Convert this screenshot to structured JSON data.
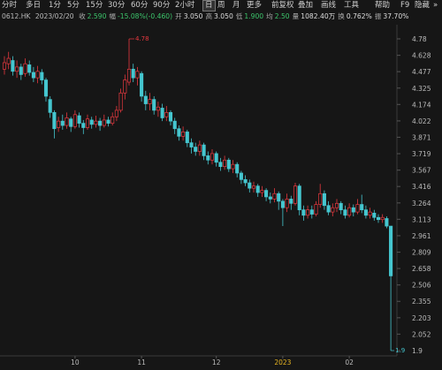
{
  "toolbar": {
    "periods": [
      "分时",
      "多日",
      "1分",
      "5分",
      "15分",
      "30分",
      "60分",
      "90分",
      "2小时",
      "日",
      "周",
      "月",
      "更多"
    ],
    "selected": "日",
    "tools": [
      "前复权",
      "叠加",
      "画线",
      "工具",
      "帮助",
      "F9",
      "隐藏"
    ]
  },
  "quote": {
    "code": "0612.HK",
    "date": "2023/02/20",
    "fields": [
      {
        "label": "收",
        "value": "2.590",
        "color": "#3cc46b"
      },
      {
        "label": "幅",
        "value": "-15.08%(-0.460)",
        "color": "#3cc46b"
      },
      {
        "label": "开",
        "value": "3.050",
        "color": "#dddddd"
      },
      {
        "label": "高",
        "value": "3.050",
        "color": "#dddddd"
      },
      {
        "label": "低",
        "value": "1.900",
        "color": "#3cc46b"
      },
      {
        "label": "均",
        "value": "2.50",
        "color": "#3cc46b"
      },
      {
        "label": "量",
        "value": "1082.40万",
        "color": "#dddddd"
      },
      {
        "label": "换",
        "value": "0.762%",
        "color": "#dddddd"
      },
      {
        "label": "振",
        "value": "37.70%",
        "color": "#dddddd"
      }
    ]
  },
  "chart_data": {
    "type": "candlestick",
    "up_color": "#e8383f",
    "down_color": "#45c6cf",
    "categories": [
      null,
      null,
      null,
      null,
      null,
      null,
      null,
      null,
      null,
      null,
      null,
      null,
      null,
      null,
      null,
      null,
      null,
      "10",
      null,
      null,
      null,
      null,
      null,
      null,
      null,
      null,
      null,
      null,
      null,
      null,
      null,
      null,
      null,
      "11",
      null,
      null,
      null,
      null,
      null,
      null,
      null,
      null,
      null,
      null,
      null,
      null,
      null,
      null,
      null,
      null,
      null,
      "12",
      null,
      null,
      null,
      null,
      null,
      null,
      null,
      null,
      null,
      null,
      null,
      null,
      null,
      null,
      null,
      "2023",
      null,
      null,
      null,
      null,
      null,
      null,
      null,
      null,
      null,
      null,
      null,
      null,
      null,
      null,
      null,
      "02",
      null,
      null,
      null,
      null,
      null,
      null,
      null,
      null,
      null,
      null
    ],
    "open": [
      4.5,
      4.55,
      4.58,
      4.48,
      4.52,
      4.46,
      4.54,
      4.47,
      4.42,
      4.47,
      4.4,
      4.22,
      4.1,
      3.96,
      4.02,
      3.98,
      4.04,
      3.97,
      4.07,
      4.0,
      3.96,
      4.03,
      3.99,
      4.02,
      3.98,
      4.03,
      4.0,
      4.06,
      4.12,
      4.28,
      4.38,
      4.5,
      4.42,
      4.46,
      4.25,
      4.18,
      4.22,
      4.12,
      4.14,
      4.06,
      4.1,
      4.02,
      3.95,
      3.88,
      3.92,
      3.82,
      3.78,
      3.74,
      3.8,
      3.7,
      3.66,
      3.72,
      3.64,
      3.6,
      3.66,
      3.58,
      3.62,
      3.54,
      3.48,
      3.45,
      3.4,
      3.42,
      3.36,
      3.38,
      3.32,
      3.3,
      3.35,
      3.28,
      3.22,
      3.3,
      3.26,
      3.42,
      3.2,
      3.15,
      3.2,
      3.16,
      3.25,
      3.35,
      3.24,
      3.18,
      3.22,
      3.26,
      3.2,
      3.15,
      3.22,
      3.18,
      3.25,
      3.2,
      3.15,
      3.17,
      3.13,
      3.11,
      3.12,
      3.05
    ],
    "high": [
      4.62,
      4.66,
      4.62,
      4.58,
      4.55,
      4.6,
      4.58,
      4.52,
      4.53,
      4.5,
      4.42,
      4.25,
      4.12,
      4.06,
      4.08,
      4.1,
      4.06,
      4.12,
      4.1,
      4.03,
      4.08,
      4.06,
      4.07,
      4.05,
      4.08,
      4.06,
      4.1,
      4.16,
      4.32,
      4.45,
      4.78,
      4.55,
      4.52,
      4.48,
      4.3,
      4.28,
      4.25,
      4.2,
      4.18,
      4.16,
      4.12,
      4.05,
      3.98,
      3.97,
      3.94,
      3.86,
      3.82,
      3.84,
      3.82,
      3.74,
      3.76,
      3.74,
      3.68,
      3.7,
      3.68,
      3.66,
      3.64,
      3.56,
      3.52,
      3.48,
      3.46,
      3.44,
      3.42,
      3.4,
      3.36,
      3.4,
      3.37,
      3.3,
      3.35,
      3.33,
      3.45,
      3.44,
      3.24,
      3.24,
      3.24,
      3.28,
      3.44,
      3.38,
      3.28,
      3.26,
      3.3,
      3.28,
      3.24,
      3.26,
      3.25,
      3.3,
      3.34,
      3.24,
      3.22,
      3.2,
      3.16,
      3.16,
      3.14,
      3.05
    ],
    "low": [
      4.45,
      4.5,
      4.44,
      4.42,
      4.4,
      4.43,
      4.44,
      4.38,
      4.37,
      4.36,
      4.2,
      4.05,
      3.86,
      3.92,
      3.94,
      3.95,
      3.92,
      3.95,
      3.96,
      3.9,
      3.94,
      3.95,
      3.96,
      3.93,
      3.96,
      3.97,
      3.98,
      4.02,
      4.1,
      4.22,
      4.35,
      4.38,
      4.35,
      4.2,
      4.12,
      4.12,
      4.08,
      4.06,
      4.02,
      4.02,
      3.98,
      3.9,
      3.84,
      3.84,
      3.78,
      3.72,
      3.7,
      3.7,
      3.66,
      3.62,
      3.62,
      3.6,
      3.56,
      3.57,
      3.55,
      3.54,
      3.5,
      3.44,
      3.42,
      3.36,
      3.36,
      3.32,
      3.32,
      3.28,
      3.26,
      3.27,
      3.2,
      3.05,
      3.18,
      3.2,
      3.24,
      3.15,
      3.1,
      3.12,
      3.12,
      3.14,
      3.22,
      3.2,
      3.15,
      3.14,
      3.18,
      3.16,
      3.12,
      3.13,
      3.14,
      3.16,
      3.17,
      3.12,
      3.12,
      3.1,
      3.08,
      3.08,
      3.03,
      1.9
    ],
    "close": [
      4.56,
      4.6,
      4.48,
      4.52,
      4.45,
      4.55,
      4.47,
      4.42,
      4.48,
      4.4,
      4.25,
      4.1,
      3.95,
      4.02,
      3.98,
      4.05,
      3.97,
      4.08,
      4.0,
      3.96,
      4.04,
      3.99,
      4.02,
      3.98,
      4.03,
      4.0,
      4.06,
      4.12,
      4.28,
      4.4,
      4.5,
      4.42,
      4.48,
      4.25,
      4.18,
      4.22,
      4.12,
      4.15,
      4.05,
      4.1,
      4.02,
      3.95,
      3.88,
      3.92,
      3.82,
      3.78,
      3.74,
      3.8,
      3.7,
      3.66,
      3.72,
      3.64,
      3.6,
      3.66,
      3.58,
      3.62,
      3.54,
      3.48,
      3.45,
      3.4,
      3.42,
      3.36,
      3.38,
      3.32,
      3.3,
      3.35,
      3.28,
      3.22,
      3.3,
      3.26,
      3.42,
      3.2,
      3.15,
      3.2,
      3.16,
      3.25,
      3.35,
      3.24,
      3.18,
      3.22,
      3.26,
      3.2,
      3.15,
      3.22,
      3.18,
      3.25,
      3.2,
      3.15,
      3.18,
      3.13,
      3.11,
      3.13,
      3.05,
      2.59
    ],
    "ylim": [
      1.9,
      4.78
    ],
    "yticks": [
      4.78,
      4.628,
      4.477,
      4.325,
      4.174,
      4.022,
      3.871,
      3.719,
      3.567,
      3.416,
      3.264,
      3.113,
      2.961,
      2.809,
      2.658,
      2.506,
      2.355,
      2.203,
      2.052,
      1.9
    ]
  }
}
